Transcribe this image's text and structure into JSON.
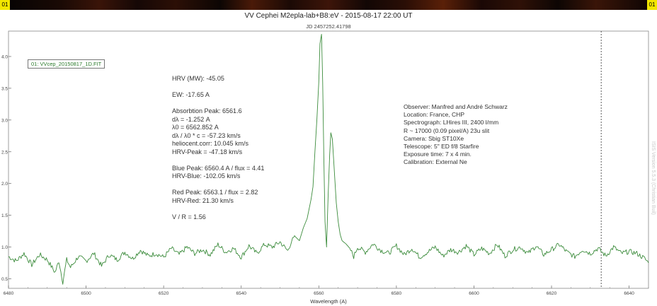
{
  "window": {
    "left_tag": "01",
    "right_tag": "01"
  },
  "sidetext": "ISIS Version 5.5.3 (Christian Buil)",
  "chart_data": {
    "type": "line",
    "title": "VV Cephei M2epla-lab+B8:eV - 2015-08-17 22:00 UT",
    "subtitle": "JD 2457252.41798",
    "xlabel": "Wavelength (A)",
    "ylabel": "",
    "xlim": [
      6480,
      6645
    ],
    "ylim": [
      0.35,
      4.4
    ],
    "xticks": [
      6480,
      6500,
      6520,
      6540,
      6560,
      6580,
      6600,
      6620,
      6640
    ],
    "yticks": [
      0.5,
      1.0,
      1.5,
      2.0,
      2.5,
      3.0,
      3.5,
      4.0
    ],
    "ytick_labels": [
      "0.5",
      "1.0",
      "1.5",
      "2.0",
      "2.5",
      "3.0",
      "3.5",
      "4.0"
    ],
    "vline_x": 6632.8,
    "legend": "01: VVcep_20150817_1D.FIT",
    "line_color": "#3c8c3c",
    "series": [
      {
        "name": "01: VVcep_20150817_1D.FIT",
        "x": [
          6480,
          6482,
          6484,
          6486,
          6488,
          6490,
          6492,
          6493,
          6494,
          6495,
          6496,
          6498,
          6500,
          6502,
          6504,
          6506,
          6508,
          6510,
          6512,
          6514,
          6516,
          6518,
          6520,
          6522,
          6524,
          6526,
          6528,
          6530,
          6532,
          6534,
          6536,
          6538,
          6540,
          6542,
          6544,
          6546,
          6548,
          6550,
          6552,
          6553,
          6554,
          6555,
          6556,
          6557,
          6558,
          6558.5,
          6559,
          6559.5,
          6560,
          6560.3,
          6560.7,
          6561,
          6561.3,
          6561.6,
          6562,
          6562.4,
          6562.8,
          6563.1,
          6563.5,
          6564,
          6564.5,
          6565,
          6565.5,
          6566,
          6567,
          6568,
          6569,
          6570,
          6572,
          6574,
          6576,
          6578,
          6580,
          6582,
          6584,
          6586,
          6588,
          6590,
          6592,
          6594,
          6596,
          6598,
          6600,
          6602,
          6604,
          6606,
          6608,
          6610,
          6612,
          6614,
          6616,
          6618,
          6620,
          6622,
          6624,
          6626,
          6628,
          6630,
          6632,
          6634,
          6636,
          6638,
          6640,
          6642,
          6644,
          6645
        ],
        "y": [
          0.85,
          0.78,
          0.9,
          0.72,
          0.88,
          0.8,
          0.6,
          0.78,
          0.45,
          0.8,
          0.68,
          0.85,
          0.78,
          0.9,
          0.7,
          0.88,
          0.8,
          0.92,
          0.82,
          0.95,
          0.86,
          0.9,
          0.84,
          0.98,
          0.88,
          1.0,
          0.9,
          0.96,
          0.88,
          1.04,
          0.92,
          0.98,
          0.84,
          1.02,
          0.9,
          1.04,
          1.0,
          1.08,
          0.94,
          1.1,
          1.16,
          1.1,
          1.3,
          1.45,
          1.75,
          1.95,
          2.5,
          3.0,
          3.6,
          4.2,
          4.35,
          3.6,
          2.4,
          1.4,
          1.0,
          1.8,
          2.45,
          2.8,
          2.7,
          2.2,
          1.7,
          1.4,
          1.2,
          1.1,
          1.05,
          0.98,
          0.85,
          1.0,
          0.92,
          1.05,
          0.95,
          0.9,
          1.02,
          0.88,
          0.98,
          0.84,
          0.92,
          1.0,
          0.86,
          0.96,
          0.92,
          1.02,
          0.88,
          0.98,
          0.9,
          1.04,
          0.86,
          0.96,
          1.0,
          0.9,
          1.02,
          0.88,
          0.96,
          1.04,
          0.92,
          0.85,
          0.96,
          0.9,
          0.98,
          0.86,
          1.0,
          0.9,
          0.93,
          0.9,
          0.82,
          0.75
        ]
      }
    ]
  },
  "annotations_left": [
    "HRV (MW): -45.05",
    "",
    "EW: -17.65 A",
    "",
    "Absorbtion Peak: 6561.6",
    "dλ = -1.252 A",
    "λ0 = 6562.852 A",
    "dλ / λ0 * c = -57.23 km/s",
    "heliocent.corr: 10.045 km/s",
    "HRV-Peak = -47.18 km/s",
    "",
    "Blue Peak: 6560.4 A / flux = 4.41",
    "HRV-Blue: -102.05 km/s",
    "",
    "Red Peak: 6563.1 / flux = 2.82",
    "HRV-Red: 21.30 km/s",
    "",
    "V / R = 1.56"
  ],
  "annotations_right": [
    "Observer: Manfred and André Schwarz",
    "Location: France, CHP",
    "Spectrograph: LHires III, 2400 l/mm",
    "R ~ 17000 (0.09 pixel/A) 23u slit",
    "Camera: Sbig ST10Xe",
    "Telescope: 5\" ED f/8 Starfire",
    "Exposure time: 7 x 4 min.",
    "Calibration: External Ne"
  ]
}
